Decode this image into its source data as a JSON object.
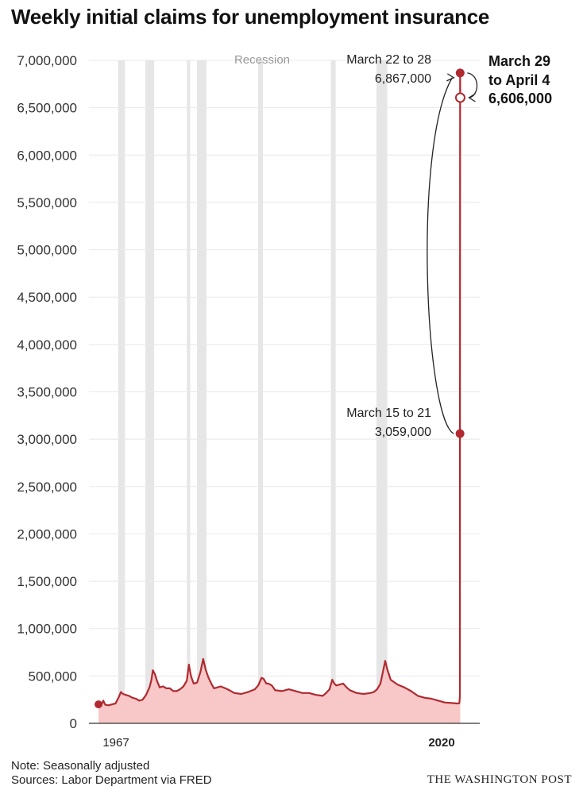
{
  "title": "Weekly initial claims for unemployment insurance",
  "notes": {
    "note": "Note: Seasonally adjusted",
    "sources": "Sources: Labor Department via FRED",
    "credit": "THE WASHINGTON POST"
  },
  "colors": {
    "line": "#b02a30",
    "area": "#f8c8c8",
    "recession": "#e6e6e6",
    "grid": "#e8e8e8"
  },
  "chart_data": {
    "type": "area",
    "ylim": [
      0,
      7000000
    ],
    "yticks": [
      0,
      500000,
      1000000,
      1500000,
      2000000,
      2500000,
      3000000,
      3500000,
      4000000,
      4500000,
      5000000,
      5500000,
      6000000,
      6500000,
      7000000
    ],
    "ytick_labels": [
      "0",
      "500,000",
      "1,000,000",
      "1,500,000",
      "2,000,000",
      "2,500,000",
      "3,000,000",
      "3,500,000",
      "4,000,000",
      "4,500,000",
      "5,000,000",
      "5,500,000",
      "6,000,000",
      "6,500,000",
      "7,000,000"
    ],
    "xlim": [
      1967,
      2020.3
    ],
    "xtick_labels": [
      "1967",
      "2020"
    ],
    "recession_label": "Recession",
    "recessions": [
      [
        1969.9,
        1970.9
      ],
      [
        1973.9,
        1975.2
      ],
      [
        1980.0,
        1980.5
      ],
      [
        1981.5,
        1982.9
      ],
      [
        1990.5,
        1991.2
      ],
      [
        2001.2,
        2001.9
      ],
      [
        2007.9,
        2009.5
      ]
    ],
    "series": [
      {
        "x": [
          1967.0,
          1967.4,
          1967.7,
          1968.0,
          1968.5,
          1969.0,
          1969.5,
          1970.0,
          1970.3,
          1970.6,
          1971.0,
          1971.5,
          1972.0,
          1972.5,
          1973.0,
          1973.5,
          1974.0,
          1974.5,
          1974.8,
          1975.0,
          1975.3,
          1975.6,
          1976.0,
          1976.5,
          1977.0,
          1977.5,
          1978.0,
          1978.5,
          1979.0,
          1979.5,
          1980.0,
          1980.3,
          1980.6,
          1981.0,
          1981.5,
          1982.0,
          1982.4,
          1982.8,
          1983.2,
          1983.6,
          1984.0,
          1985.0,
          1986.0,
          1987.0,
          1988.0,
          1989.0,
          1990.0,
          1990.5,
          1991.0,
          1991.3,
          1991.7,
          1992.0,
          1992.5,
          1993.0,
          1994.0,
          1995.0,
          1996.0,
          1997.0,
          1998.0,
          1999.0,
          2000.0,
          2000.5,
          2001.0,
          2001.4,
          2001.7,
          2002.0,
          2003.0,
          2003.5,
          2004.0,
          2005.0,
          2006.0,
          2007.0,
          2007.5,
          2008.0,
          2008.5,
          2008.9,
          2009.2,
          2009.5,
          2010.0,
          2011.0,
          2012.0,
          2013.0,
          2014.0,
          2015.0,
          2016.0,
          2017.0,
          2018.0,
          2019.0,
          2019.8,
          2020.1,
          2020.18,
          2020.2,
          2020.22,
          2020.24
        ],
        "y": [
          200000,
          190000,
          240000,
          195000,
          190000,
          200000,
          210000,
          280000,
          330000,
          310000,
          300000,
          290000,
          270000,
          260000,
          240000,
          250000,
          300000,
          380000,
          460000,
          560000,
          520000,
          450000,
          380000,
          390000,
          370000,
          370000,
          340000,
          340000,
          360000,
          390000,
          450000,
          620000,
          500000,
          420000,
          430000,
          540000,
          680000,
          560000,
          480000,
          420000,
          370000,
          390000,
          360000,
          320000,
          310000,
          330000,
          360000,
          400000,
          480000,
          470000,
          420000,
          420000,
          400000,
          350000,
          340000,
          360000,
          340000,
          320000,
          320000,
          300000,
          290000,
          320000,
          360000,
          460000,
          420000,
          400000,
          420000,
          380000,
          350000,
          320000,
          310000,
          320000,
          330000,
          360000,
          420000,
          560000,
          660000,
          570000,
          460000,
          410000,
          380000,
          340000,
          290000,
          270000,
          260000,
          240000,
          220000,
          215000,
          210000,
          211000,
          282000,
          3059000,
          6867000,
          6606000
        ]
      }
    ],
    "annotations": [
      {
        "x": 2020.2,
        "y": 3059000,
        "line1": "March 15 to 21",
        "line2": "3,059,000"
      },
      {
        "x": 2020.22,
        "y": 6867000,
        "line1": "March 22 to 28",
        "line2": "6,867,000"
      },
      {
        "x": 2020.24,
        "y": 6606000,
        "line1": "March 29",
        "line2": "to April 4",
        "line3": "6,606,000"
      }
    ]
  }
}
